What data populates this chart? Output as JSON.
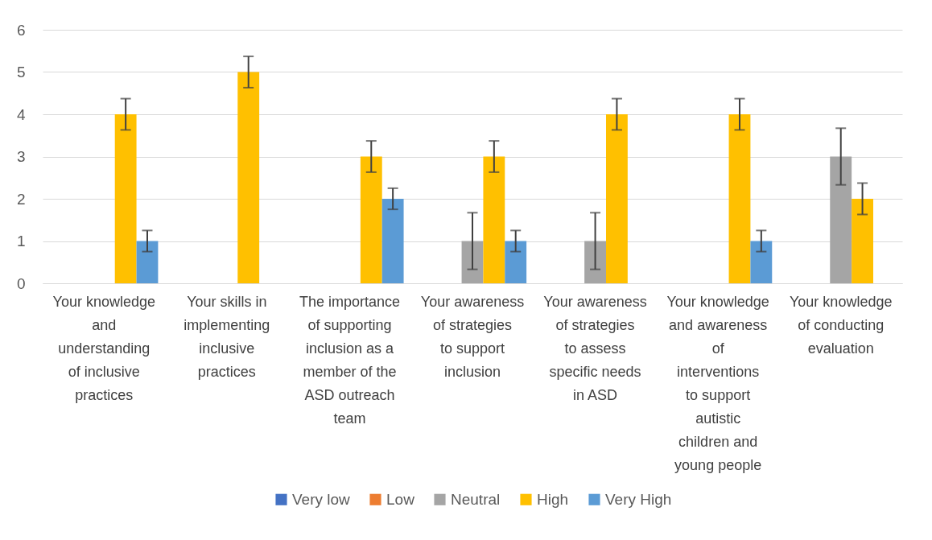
{
  "chart_data": {
    "type": "bar",
    "categories": [
      "Your knowledge and understanding of inclusive practices",
      "Your skills in implementing inclusive practices",
      "The importance of supporting inclusion as a member of the ASD outreach team",
      "Your awareness of strategies to support inclusion",
      "Your awareness of strategies to assess specific needs in ASD",
      "Your knowledge and awareness of interventions to support autistic children and young people",
      "Your knowledge of conducting evaluation"
    ],
    "series": [
      {
        "name": "Very low",
        "color": "#4472c4",
        "values": [
          null,
          null,
          null,
          null,
          null,
          null,
          null
        ]
      },
      {
        "name": "Low",
        "color": "#ed7d31",
        "values": [
          null,
          null,
          null,
          null,
          null,
          null,
          null
        ]
      },
      {
        "name": "Neutral",
        "color": "#a5a5a5",
        "values": [
          null,
          null,
          null,
          1,
          1,
          null,
          3
        ],
        "errors": [
          null,
          null,
          null,
          0.67,
          0.67,
          null,
          0.67
        ]
      },
      {
        "name": "High",
        "color": "#ffc000",
        "values": [
          4,
          5,
          3,
          3,
          4,
          4,
          2
        ],
        "errors": [
          0.37,
          0.37,
          0.37,
          0.37,
          0.37,
          0.37,
          0.37
        ]
      },
      {
        "name": "Very High",
        "color": "#5b9bd5",
        "values": [
          1,
          null,
          2,
          1,
          null,
          1,
          null
        ],
        "errors": [
          0.25,
          null,
          0.25,
          0.25,
          null,
          0.25,
          null
        ]
      }
    ],
    "ylim": [
      0,
      6
    ],
    "yticks": [
      0,
      1,
      2,
      3,
      4,
      5,
      6
    ],
    "grid": "y",
    "legend": "bottom"
  }
}
